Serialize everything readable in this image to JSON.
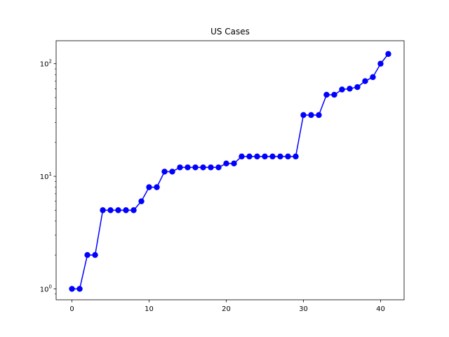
{
  "chart_data": {
    "type": "line",
    "title": "US Cases",
    "xlabel": "",
    "ylabel": "",
    "y_scale": "log",
    "grid": false,
    "legend": "none",
    "x": [
      0,
      1,
      2,
      3,
      4,
      5,
      6,
      7,
      8,
      9,
      10,
      11,
      12,
      13,
      14,
      15,
      16,
      17,
      18,
      19,
      20,
      21,
      22,
      23,
      24,
      25,
      26,
      27,
      28,
      29,
      30,
      31,
      32,
      33,
      34,
      35,
      36,
      37,
      38,
      39,
      40,
      41
    ],
    "series": [
      {
        "color": "#0000ff",
        "marker": "circle",
        "values": [
          1,
          1,
          2,
          2,
          5,
          5,
          5,
          5,
          5,
          6,
          8,
          8,
          11,
          11,
          12,
          12,
          12,
          12,
          12,
          12,
          13,
          13,
          15,
          15,
          15,
          15,
          15,
          15,
          15,
          15,
          35,
          35,
          35,
          53,
          53,
          59,
          60,
          62,
          70,
          76,
          100,
          122
        ]
      }
    ],
    "xlim": [
      -2.05,
      43.05
    ],
    "ylim": [
      0.8,
      160
    ],
    "x_ticks": [
      {
        "value": 0,
        "label": "0"
      },
      {
        "value": 10,
        "label": "10"
      },
      {
        "value": 20,
        "label": "20"
      },
      {
        "value": 30,
        "label": "30"
      },
      {
        "value": 40,
        "label": "40"
      }
    ],
    "y_ticks": [
      {
        "value": 1,
        "base": "10",
        "exp": "0"
      },
      {
        "value": 10,
        "base": "10",
        "exp": "1"
      },
      {
        "value": 100,
        "base": "10",
        "exp": "2"
      }
    ],
    "y_minor_ticks": [
      0.9,
      2,
      3,
      4,
      5,
      6,
      7,
      8,
      9,
      20,
      30,
      40,
      50,
      60,
      70,
      80,
      90
    ]
  }
}
